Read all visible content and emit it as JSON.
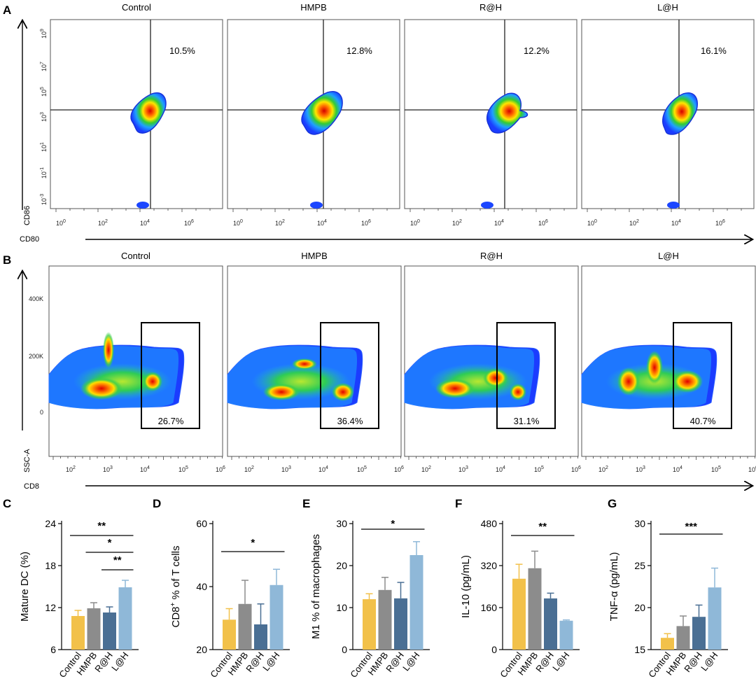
{
  "panels": {
    "A": "A",
    "B": "B",
    "C": "C",
    "D": "D",
    "E": "E",
    "F": "F",
    "G": "G"
  },
  "group_names": [
    "Control",
    "HMPB",
    "R@H",
    "L@H"
  ],
  "flow_A": {
    "y_axis_label": "CD86",
    "x_axis_label": "CD80",
    "y_ticks": [
      {
        "base": "10",
        "exp": "9"
      },
      {
        "base": "10",
        "exp": "7"
      },
      {
        "base": "10",
        "exp": "5"
      },
      {
        "base": "10",
        "exp": "3"
      },
      {
        "base": "10",
        "exp": "1"
      },
      {
        "base": "10",
        "exp": "-1"
      },
      {
        "base": "10",
        "exp": "-3"
      }
    ],
    "x_ticks": [
      {
        "base": "10",
        "exp": "0"
      },
      {
        "base": "10",
        "exp": "2"
      },
      {
        "base": "10",
        "exp": "4"
      },
      {
        "base": "10",
        "exp": "6"
      }
    ],
    "percentages": [
      "10.5%",
      "12.8%",
      "12.2%",
      "16.1%"
    ]
  },
  "flow_B": {
    "y_axis_label": "SSC-A",
    "x_axis_label": "CD8",
    "y_ticks": [
      "400K",
      "200K",
      "0"
    ],
    "x_ticks": [
      {
        "base": "10",
        "exp": "2"
      },
      {
        "base": "10",
        "exp": "3"
      },
      {
        "base": "10",
        "exp": "4"
      },
      {
        "base": "10",
        "exp": "5"
      },
      {
        "base": "10",
        "exp": "6"
      }
    ],
    "percentages": [
      "26.7%",
      "36.4%",
      "31.1%",
      "40.7%"
    ]
  },
  "colors": {
    "Control": "#f2c14a",
    "HMPB": "#8c8c8c",
    "R@H": "#4a6f94",
    "L@H": "#8fb8d8",
    "error": "#b0b0b0"
  },
  "chart_data": [
    {
      "panel": "C",
      "type": "bar",
      "ylabel": "Mature DC (%)",
      "categories": [
        "Control",
        "HMPB",
        "R@H",
        "L@H"
      ],
      "values": [
        10.8,
        11.9,
        11.3,
        14.9
      ],
      "errors": [
        0.8,
        0.8,
        0.8,
        1.0
      ],
      "ylim": [
        6,
        24
      ],
      "yticks": [
        "6",
        "12",
        "18",
        "24"
      ],
      "significance": [
        {
          "from": 0,
          "to": 3,
          "label": "**"
        },
        {
          "from": 1,
          "to": 3,
          "label": "*"
        },
        {
          "from": 2,
          "to": 3,
          "label": "**"
        }
      ]
    },
    {
      "panel": "D",
      "type": "bar",
      "ylabel_main": "CD8",
      "ylabel_sup": "+",
      "ylabel_rest": " % of T cells",
      "categories": [
        "Control",
        "HMPB",
        "R@H",
        "L@H"
      ],
      "values": [
        29.5,
        34.5,
        28.0,
        40.5
      ],
      "errors": [
        3.5,
        7.5,
        6.5,
        5.0
      ],
      "ylim": [
        20,
        60
      ],
      "yticks": [
        "20",
        "40",
        "60"
      ],
      "significance": [
        {
          "from": 0,
          "to": 3,
          "label": "*"
        }
      ]
    },
    {
      "panel": "E",
      "type": "bar",
      "ylabel": "M1 % of macrophages",
      "categories": [
        "Control",
        "HMPB",
        "R@H",
        "L@H"
      ],
      "values": [
        12.0,
        14.2,
        12.2,
        22.5
      ],
      "errors": [
        1.3,
        3.0,
        3.8,
        3.2
      ],
      "ylim": [
        0,
        30
      ],
      "yticks": [
        "0",
        "10",
        "20",
        "30"
      ],
      "significance": [
        {
          "from": 0,
          "to": 3,
          "label": "*"
        }
      ]
    },
    {
      "panel": "F",
      "type": "bar",
      "ylabel": "IL-10 (pg/mL)",
      "categories": [
        "Control",
        "HMPB",
        "R@H",
        "L@H"
      ],
      "values": [
        270,
        310,
        195,
        110
      ],
      "errors": [
        55,
        65,
        20,
        3
      ],
      "ylim": [
        0,
        480
      ],
      "yticks": [
        "0",
        "160",
        "320",
        "480"
      ],
      "significance": [
        {
          "from": 0,
          "to": 3,
          "label": "**"
        }
      ]
    },
    {
      "panel": "G",
      "type": "bar",
      "ylabel": "TNF-α (pg/mL)",
      "categories": [
        "Control",
        "HMPB",
        "R@H",
        "L@H"
      ],
      "values": [
        16.4,
        17.8,
        18.9,
        22.4
      ],
      "errors": [
        0.5,
        1.2,
        1.4,
        2.3
      ],
      "ylim": [
        15,
        30
      ],
      "yticks": [
        "15",
        "20",
        "25",
        "30"
      ],
      "significance": [
        {
          "from": 0,
          "to": 3,
          "label": "***"
        }
      ]
    }
  ]
}
